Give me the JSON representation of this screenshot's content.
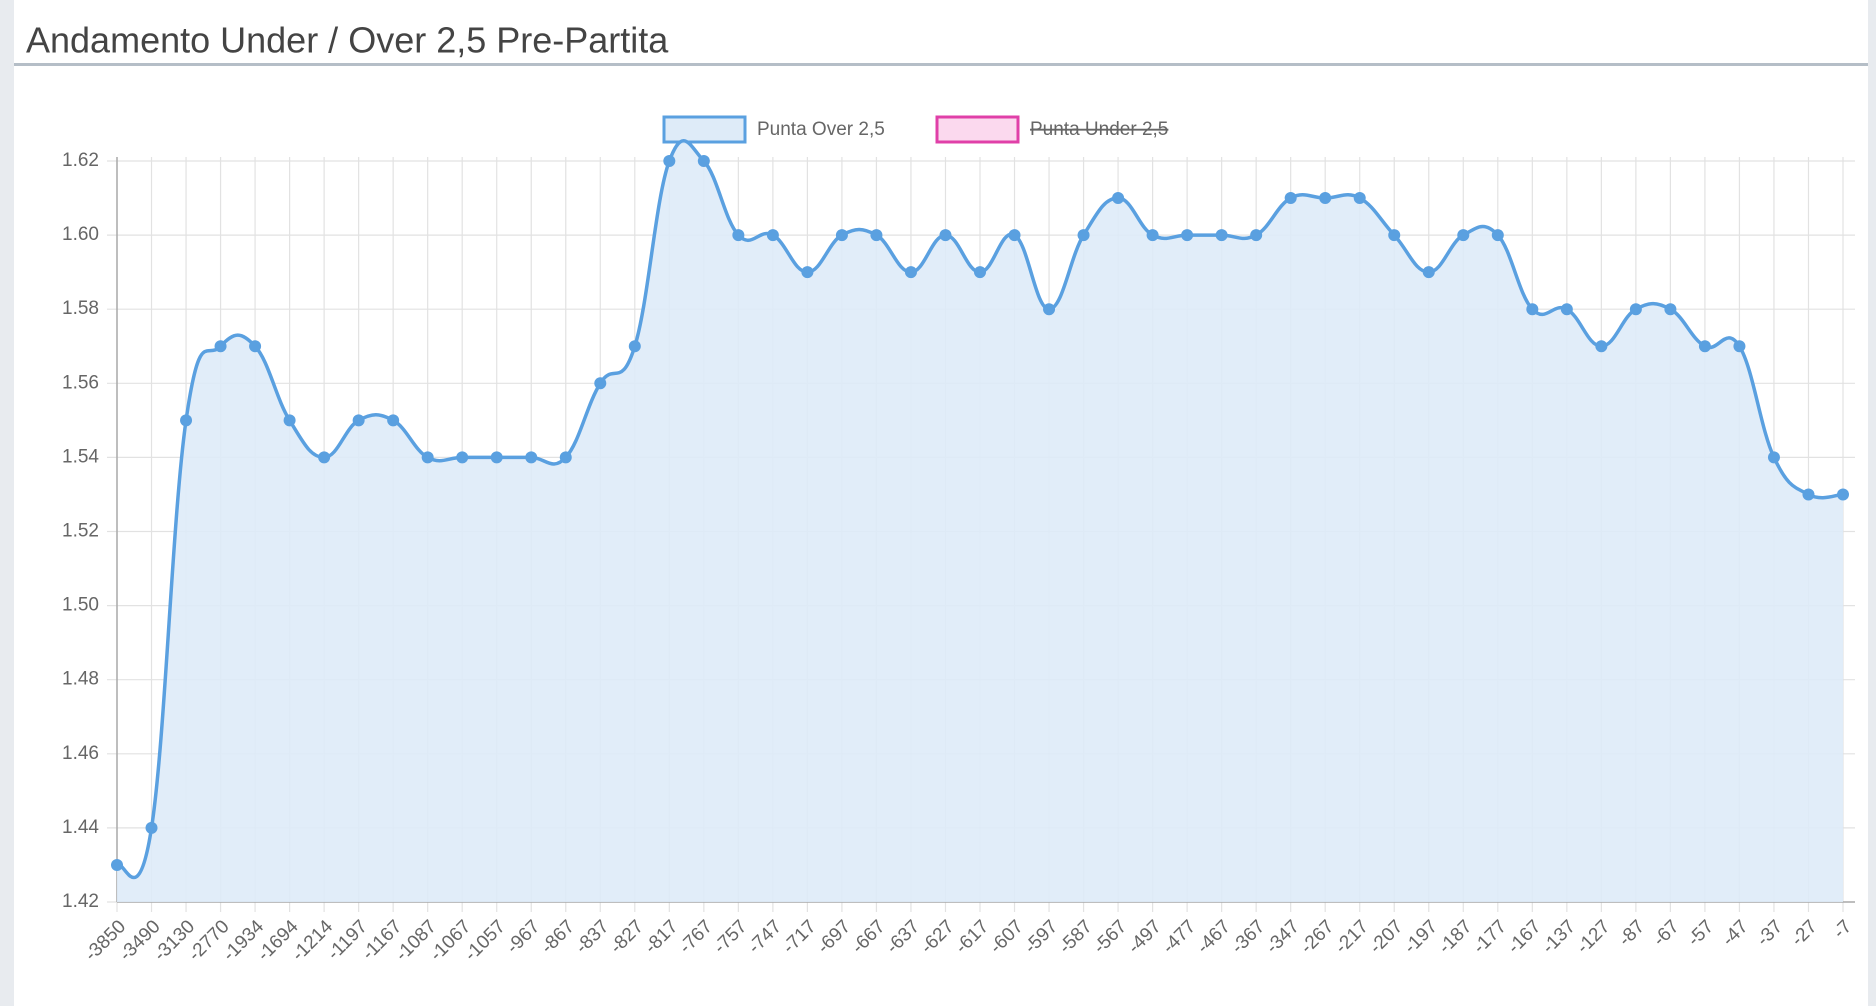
{
  "chart_data": {
    "type": "line",
    "title": "Andamento Under / Over 2,5 Pre-Partita",
    "categories": [
      -3850,
      -3490,
      -3130,
      -2770,
      -1934,
      -1694,
      -1214,
      -1197,
      -1167,
      -1087,
      -1067,
      -1057,
      -967,
      -867,
      -837,
      -827,
      -817,
      -767,
      -757,
      -747,
      -717,
      -697,
      -667,
      -637,
      -627,
      -617,
      -607,
      -597,
      -587,
      -567,
      -497,
      -477,
      -467,
      -367,
      -347,
      -267,
      -217,
      -207,
      -197,
      -187,
      -177,
      -167,
      -137,
      -127,
      -87,
      -67,
      -57,
      -47,
      -37,
      -27,
      -7
    ],
    "series": [
      {
        "name": "Punta Over 2,5",
        "color": "#5aa0e0",
        "fill": "#deebf8",
        "values": [
          1.43,
          1.44,
          1.55,
          1.57,
          1.57,
          1.55,
          1.54,
          1.55,
          1.55,
          1.54,
          1.54,
          1.54,
          1.54,
          1.54,
          1.56,
          1.57,
          1.62,
          1.62,
          1.6,
          1.6,
          1.59,
          1.6,
          1.6,
          1.59,
          1.6,
          1.59,
          1.6,
          1.58,
          1.6,
          1.61,
          1.6,
          1.6,
          1.6,
          1.6,
          1.61,
          1.61,
          1.61,
          1.6,
          1.59,
          1.6,
          1.6,
          1.58,
          1.58,
          1.57,
          1.58,
          1.58,
          1.57,
          1.57,
          1.54,
          1.53,
          1.53
        ]
      },
      {
        "name": "Punta Under 2,5",
        "color": "#e040a8",
        "fill": "#fbd9ee",
        "hidden": true
      }
    ],
    "ylim": [
      1.42,
      1.62
    ],
    "yticks": [
      1.42,
      1.44,
      1.46,
      1.48,
      {
        "value": 1.5,
        "label": "1.50"
      },
      1.52,
      1.54,
      1.56,
      1.58,
      {
        "value": 1.6,
        "label": "1.60"
      },
      1.62
    ],
    "grid": true
  }
}
